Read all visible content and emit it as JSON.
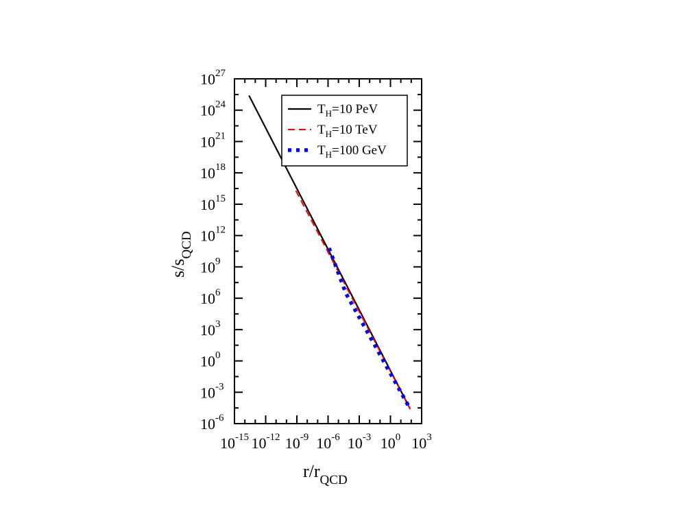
{
  "chart_data": {
    "type": "line",
    "title": "",
    "xlabel": {
      "base": "r/r",
      "sub": "QCD"
    },
    "ylabel": {
      "base": "s/s",
      "sub": "QCD"
    },
    "xscale": "log",
    "yscale": "log",
    "xlim_exp": [
      -15,
      3
    ],
    "ylim_exp": [
      -6,
      27
    ],
    "x_tick_labels": [
      {
        "base": "10",
        "exp": "-15",
        "value_exp": -15
      },
      {
        "base": "10",
        "exp": "-12",
        "value_exp": -12
      },
      {
        "base": "10",
        "exp": "-9",
        "value_exp": -9
      },
      {
        "base": "10",
        "exp": "-6",
        "value_exp": -6
      },
      {
        "base": "10",
        "exp": "-3",
        "value_exp": -3
      },
      {
        "base": "10",
        "exp": "0",
        "value_exp": 0
      },
      {
        "base": "10",
        "exp": "3",
        "value_exp": 3
      }
    ],
    "y_tick_labels": [
      {
        "base": "10",
        "exp": "-6",
        "value_exp": -6
      },
      {
        "base": "10",
        "exp": "-3",
        "value_exp": -3
      },
      {
        "base": "10",
        "exp": "0",
        "value_exp": 0
      },
      {
        "base": "10",
        "exp": "3",
        "value_exp": 3
      },
      {
        "base": "10",
        "exp": "6",
        "value_exp": 6
      },
      {
        "base": "10",
        "exp": "9",
        "value_exp": 9
      },
      {
        "base": "10",
        "exp": "12",
        "value_exp": 12
      },
      {
        "base": "10",
        "exp": "15",
        "value_exp": 15
      },
      {
        "base": "10",
        "exp": "18",
        "value_exp": 18
      },
      {
        "base": "10",
        "exp": "21",
        "value_exp": 21
      },
      {
        "base": "10",
        "exp": "24",
        "value_exp": 24
      },
      {
        "base": "10",
        "exp": "27",
        "value_exp": 27
      }
    ],
    "legend_position": "top-right",
    "series": [
      {
        "legend_main": "T",
        "legend_sub": "H",
        "legend_rest": "=10 PeV",
        "style": "solid",
        "color": "#000000",
        "points_log10": [
          [
            -13.6,
            25.4
          ],
          [
            1.9,
            -4.6
          ]
        ]
      },
      {
        "legend_main": "T",
        "legend_sub": "H",
        "legend_rest": "=10 TeV",
        "style": "dashed",
        "color": "#ff0000",
        "points_log10": [
          [
            -9.1,
            16.3
          ],
          [
            1.9,
            -4.6
          ]
        ]
      },
      {
        "legend_main": "T",
        "legend_sub": "H",
        "legend_rest": "=100 GeV",
        "style": "dotted",
        "color": "#0000ff",
        "points_log10": [
          [
            -5.9,
            10.8
          ],
          [
            -4.3,
            6.5
          ],
          [
            1.9,
            -4.6
          ]
        ]
      }
    ]
  }
}
